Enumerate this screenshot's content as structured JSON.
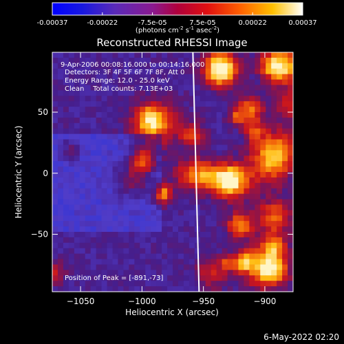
{
  "colorbar": {
    "ticks": [
      "-0.00037",
      "-0.00022",
      "-7.5e-05",
      "7.5e-05",
      "0.00022",
      "0.00037"
    ],
    "range": [
      -0.00037,
      0.00037
    ],
    "units_text": "(photons cm",
    "units_exp1": "-2",
    "units_mid": " s",
    "units_exp2": "-1",
    "units_end": " asec",
    "units_exp3": "-2",
    "units_close": ")"
  },
  "chart_data": {
    "type": "heatmap",
    "title": "Reconstructed RHESSI Image",
    "xlabel": "Heliocentric X (arcsec)",
    "ylabel": "Heliocentric Y (arcsec)",
    "xlim": [
      -1073,
      -877
    ],
    "ylim": [
      -97,
      99
    ],
    "xticks": [
      -1050,
      -1000,
      -950,
      -900
    ],
    "yticks": [
      -50,
      0,
      50
    ],
    "xtick_labels": [
      "−1050",
      "−1000",
      "−950",
      "−900"
    ],
    "ytick_labels": [
      "−50",
      "0",
      "50"
    ],
    "limb_x": -958,
    "annotations": [
      "9-Apr-2006 00:08:16.000 to 00:14:16.000",
      "Detectors: 3F 4F 5F 6F 7F 8F, Att 0",
      "Energy Range: 12.0 - 25.0 keV",
      "Clean    Total counts: 7.13E+03"
    ],
    "peak_text": "Position of Peak = [-891,-73]",
    "peak_position": [
      -891,
      -73
    ]
  },
  "footer": {
    "timestamp": "6-May-2022 02:20"
  }
}
